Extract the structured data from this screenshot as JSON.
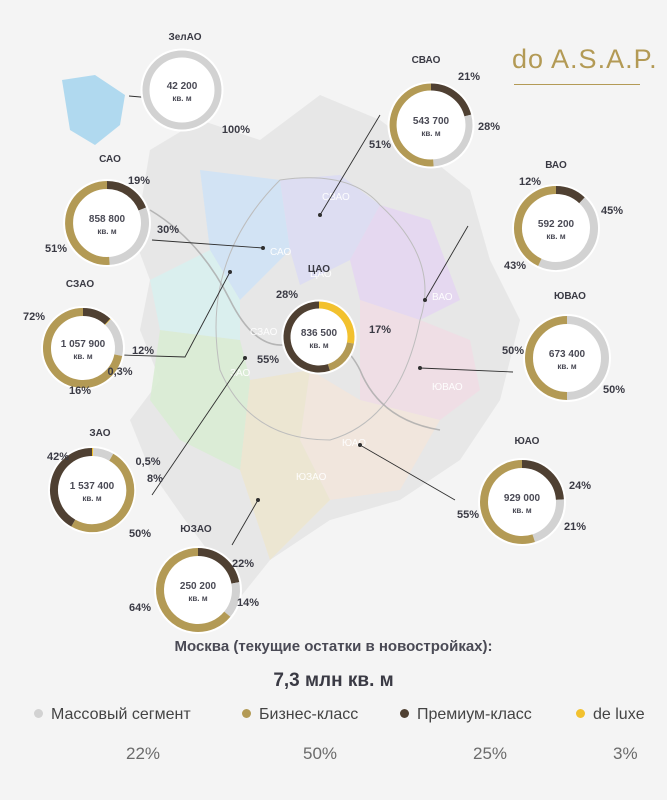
{
  "brand": {
    "name": "do A.S.A.P."
  },
  "summary": {
    "title": "Москва (текущие остатки в новостройках):",
    "total": "7,3 млн кв. м"
  },
  "legend": [
    {
      "label": "Массовый сегмент",
      "color": "#d2d2d2",
      "share": "22%"
    },
    {
      "label": "Бизнес-класс",
      "color": "#b39a55",
      "share": "50%"
    },
    {
      "label": "Премиум-класс",
      "color": "#4f4032",
      "share": "25%"
    },
    {
      "label": "de luxe",
      "color": "#f2c12e",
      "share": "3%"
    }
  ],
  "colors": {
    "mass": "#d2d2d2",
    "business": "#b39a55",
    "premium": "#4f4032",
    "deluxe": "#f2c12e"
  },
  "chart_data": {
    "type": "pie",
    "title": "Москва (текущие остатки в новостройках):",
    "series_names": [
      "Массовый сегмент",
      "Бизнес-класс",
      "Премиум-класс",
      "de luxe"
    ],
    "districts": [
      {
        "name": "ЗелАО",
        "area_value": "42 200",
        "area_unit": "кв. м",
        "segments": [
          {
            "cat": "mass",
            "label": "100%",
            "value": 100
          }
        ]
      },
      {
        "name": "СВАО",
        "area_value": "543 700",
        "area_unit": "кв. м",
        "segments": [
          {
            "cat": "premium",
            "label": "21%",
            "value": 21
          },
          {
            "cat": "mass",
            "label": "28%",
            "value": 28
          },
          {
            "cat": "business",
            "label": "51%",
            "value": 51
          }
        ]
      },
      {
        "name": "САО",
        "area_value": "858 800",
        "area_unit": "кв. м",
        "segments": [
          {
            "cat": "premium",
            "label": "19%",
            "value": 19
          },
          {
            "cat": "mass",
            "label": "30%",
            "value": 30
          },
          {
            "cat": "business",
            "label": "51%",
            "value": 51
          }
        ]
      },
      {
        "name": "ВАО",
        "area_value": "592 200",
        "area_unit": "кв. м",
        "segments": [
          {
            "cat": "premium",
            "label": "12%",
            "value": 12
          },
          {
            "cat": "mass",
            "label": "45%",
            "value": 45
          },
          {
            "cat": "business",
            "label": "43%",
            "value": 43
          }
        ]
      },
      {
        "name": "ЦАО",
        "area_value": "836 500",
        "area_unit": "кв. м",
        "segments": [
          {
            "cat": "deluxe",
            "label": "28%",
            "value": 28
          },
          {
            "cat": "business",
            "label": "17%",
            "value": 17
          },
          {
            "cat": "premium",
            "label": "55%",
            "value": 55
          }
        ]
      },
      {
        "name": "СЗАО",
        "area_value": "1 057 900",
        "area_unit": "кв. м",
        "segments": [
          {
            "cat": "premium",
            "label": "12%",
            "value": 12
          },
          {
            "cat": "deluxe",
            "label": "0,3%",
            "value": 0.3
          },
          {
            "cat": "mass",
            "label": "16%",
            "value": 16
          },
          {
            "cat": "business",
            "label": "72%",
            "value": 72
          }
        ]
      },
      {
        "name": "ЮВАО",
        "area_value": "673 400",
        "area_unit": "кв. м",
        "segments": [
          {
            "cat": "mass",
            "label": "50%",
            "value": 50
          },
          {
            "cat": "business",
            "label": "50%",
            "value": 50
          }
        ]
      },
      {
        "name": "ЗАО",
        "area_value": "1 537 400",
        "area_unit": "кв. м",
        "segments": [
          {
            "cat": "deluxe",
            "label": "0,5%",
            "value": 0.5
          },
          {
            "cat": "mass",
            "label": "8%",
            "value": 8
          },
          {
            "cat": "business",
            "label": "50%",
            "value": 50
          },
          {
            "cat": "premium",
            "label": "42%",
            "value": 42
          }
        ]
      },
      {
        "name": "ЮАО",
        "area_value": "929 000",
        "area_unit": "кв. м",
        "segments": [
          {
            "cat": "premium",
            "label": "24%",
            "value": 24
          },
          {
            "cat": "mass",
            "label": "21%",
            "value": 21
          },
          {
            "cat": "business",
            "label": "55%",
            "value": 55
          }
        ]
      },
      {
        "name": "ЮЗАО",
        "area_value": "250 200",
        "area_unit": "кв. м",
        "segments": [
          {
            "cat": "premium",
            "label": "22%",
            "value": 22
          },
          {
            "cat": "mass",
            "label": "14%",
            "value": 14
          },
          {
            "cat": "business",
            "label": "64%",
            "value": 64
          }
        ]
      }
    ],
    "map_labels": [
      "ЗелАО",
      "САО",
      "СВАО",
      "ЦАО",
      "СЗАО",
      "ВАО",
      "ЮВАО",
      "ЗАО",
      "ЮАО",
      "ЮЗАО"
    ]
  }
}
